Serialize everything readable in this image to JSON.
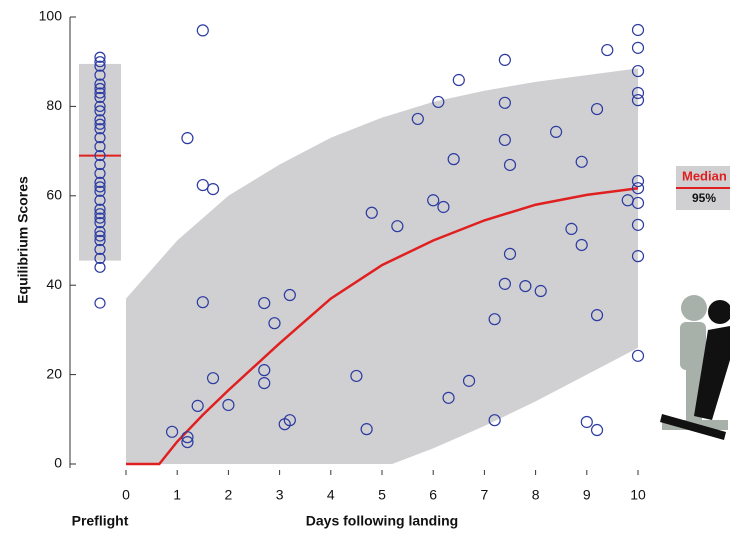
{
  "chart_data": {
    "type": "scatter",
    "y_label": "Equilibrium Scores",
    "x_label": "Days following landing",
    "preflight_label": "Preflight",
    "xlim": [
      0,
      10
    ],
    "xticks": [
      0,
      1,
      2,
      3,
      4,
      5,
      6,
      7,
      8,
      9,
      10
    ],
    "ylim": [
      0,
      100
    ],
    "yticks": [
      0,
      20,
      40,
      60,
      80,
      100
    ],
    "preflight": {
      "values": [
        36,
        44,
        46,
        48,
        50,
        51,
        52,
        54,
        55,
        56,
        57,
        59,
        61,
        62,
        63,
        65,
        67,
        69,
        71,
        73,
        75,
        76,
        77,
        79,
        80,
        82,
        83,
        84,
        85,
        87,
        89,
        90,
        91
      ],
      "median": 69,
      "lower": 45.5,
      "upper": 89.5
    },
    "points": {
      "color": "#2b3aa0",
      "x": [
        0.9,
        1.2,
        1.2,
        1.4,
        1.2,
        1.5,
        1.5,
        1.7,
        1.5,
        1.7,
        2.0,
        2.7,
        2.7,
        2.7,
        2.9,
        3.2,
        3.1,
        3.2,
        4.5,
        4.7,
        4.8,
        5.3,
        5.7,
        6.0,
        6.1,
        6.2,
        6.4,
        6.5,
        6.3,
        6.7,
        7.2,
        7.2,
        7.4,
        7.4,
        7.4,
        7.4,
        7.5,
        7.5,
        7.8,
        8.1,
        8.4,
        8.7,
        8.9,
        8.9,
        9.2,
        9.2,
        9.4,
        9.0,
        9.2,
        9.8,
        10,
        10,
        10,
        10,
        10,
        10,
        10,
        10,
        10,
        10,
        10
      ],
      "values": [
        7.2,
        6.0,
        4.9,
        13,
        72.9,
        97,
        62.4,
        61.5,
        36.2,
        19.2,
        13.2,
        36,
        21,
        18.1,
        31.5,
        37.8,
        8.9,
        9.8,
        19.7,
        7.8,
        56.2,
        53.2,
        77.2,
        59,
        81,
        57.5,
        68.2,
        85.9,
        14.8,
        18.6,
        32.4,
        9.8,
        90.4,
        40.3,
        80.8,
        72.5,
        66.9,
        47,
        39.8,
        38.7,
        74.3,
        52.6,
        67.6,
        49,
        79.4,
        33.3,
        92.6,
        9.4,
        7.6,
        59,
        97.1,
        93.1,
        87.9,
        83,
        81.4,
        63.3,
        61.7,
        58.4,
        53.5,
        46.5,
        24.2
      ]
    },
    "median": {
      "name": "Median",
      "color": "#e02020",
      "x": [
        0,
        0.65,
        1,
        1.5,
        2,
        3,
        4,
        5,
        6,
        7,
        8,
        9,
        10
      ],
      "values": [
        0,
        0,
        5,
        11,
        16.5,
        27,
        37,
        44.5,
        50,
        54.5,
        58,
        60.2,
        61.7
      ]
    },
    "band": {
      "name": "95%",
      "color": "#d0d0d2",
      "x": [
        0,
        1,
        2,
        3,
        4,
        5,
        5.2,
        6,
        7,
        8,
        9,
        10
      ],
      "lower": [
        0,
        0,
        0,
        0,
        0,
        0,
        0,
        3.5,
        8.5,
        14,
        20,
        26
      ],
      "upper": [
        37,
        50,
        60,
        67,
        73,
        77.5,
        78.2,
        81,
        83.5,
        85.5,
        87,
        88.5
      ]
    }
  }
}
